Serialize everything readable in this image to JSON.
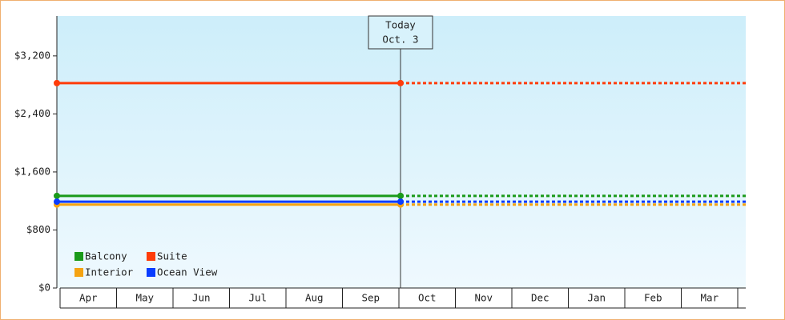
{
  "chart_data": {
    "type": "line",
    "annotation": {
      "title": "Today",
      "date": "Oct. 3"
    },
    "categories": [
      "Apr",
      "May",
      "Jun",
      "Jul",
      "Aug",
      "Sep",
      "Oct",
      "Nov",
      "Dec",
      "Jan",
      "Feb",
      "Mar"
    ],
    "series": [
      {
        "name": "Balcony",
        "color": "#1a9a1a",
        "value": 1270
      },
      {
        "name": "Suite",
        "color": "#ff3c0a",
        "value": 2825
      },
      {
        "name": "Interior",
        "color": "#f5a312",
        "value": 1150
      },
      {
        "name": "Ocean View",
        "color": "#0a3cff",
        "value": 1190
      }
    ],
    "ylim": [
      0,
      3750
    ],
    "yticks": [
      {
        "value": 0,
        "label": "$0"
      },
      {
        "value": 800,
        "label": "$800"
      },
      {
        "value": 1600,
        "label": "$1,600"
      },
      {
        "value": 2400,
        "label": "$2,400"
      },
      {
        "value": 3200,
        "label": "$3,200"
      }
    ],
    "legend": "bottom-left"
  }
}
